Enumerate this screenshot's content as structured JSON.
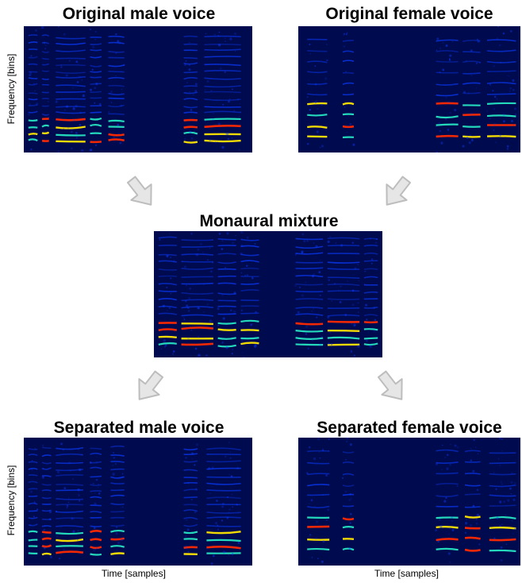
{
  "panels": {
    "orig_male": {
      "title": "Original male voice",
      "ylabel": "Frequency [bins]"
    },
    "orig_female": {
      "title": "Original female voice"
    },
    "mixture": {
      "title": "Monaural mixture"
    },
    "sep_male": {
      "title": "Separated male voice",
      "ylabel": "Frequency [bins]",
      "xlabel": "Time [samples]"
    },
    "sep_female": {
      "title": "Separated female voice",
      "xlabel": "Time [samples]"
    }
  },
  "colors": {
    "background": "#000a4e",
    "harmonic_low": "#0a3cff",
    "harmonic_mid": "#28f0c8",
    "harmonic_high": "#ffe600",
    "harmonic_peak": "#ff2a00",
    "arrow_fill": "#e6e6e6",
    "arrow_stroke": "#bdbdbd"
  },
  "icons": {
    "arrow": "down-arrow-icon"
  }
}
